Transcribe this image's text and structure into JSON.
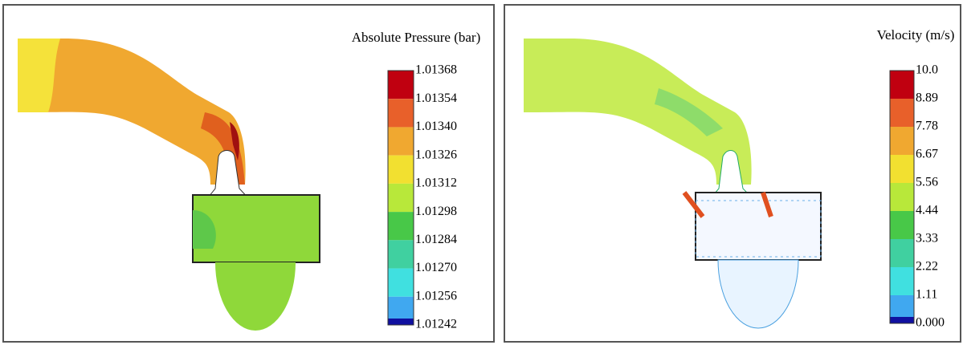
{
  "panels": [
    {
      "title": "Absolute Pressure (bar)",
      "legend_labels": [
        "1.01368",
        "1.01354",
        "1.01340",
        "1.01326",
        "1.01312",
        "1.01298",
        "1.01284",
        "1.01270",
        "1.01256",
        "1.01242"
      ]
    },
    {
      "title": "Velocity (m/s)",
      "legend_labels": [
        "10.0",
        "8.89",
        "7.78",
        "6.67",
        "5.56",
        "4.44",
        "3.33",
        "2.22",
        "1.11",
        "0.000"
      ]
    }
  ]
}
